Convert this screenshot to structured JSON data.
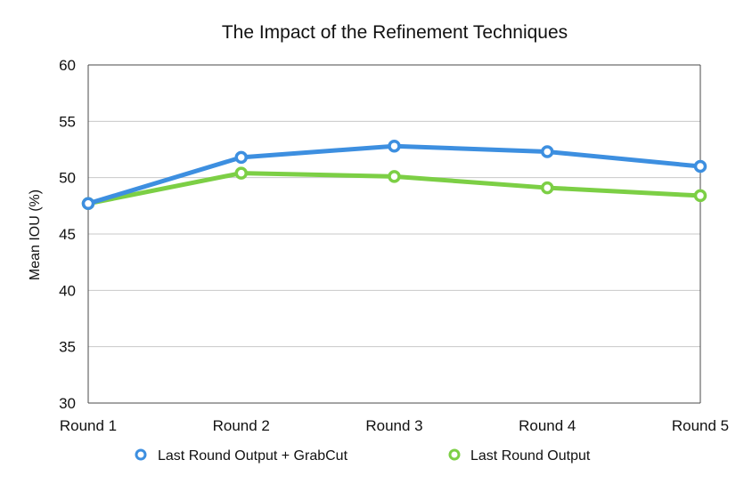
{
  "chart_data": {
    "type": "line",
    "title": "The Impact of the Refinement Techniques",
    "xlabel": "",
    "ylabel": "Mean IOU (%)",
    "categories": [
      "Round 1",
      "Round 2",
      "Round 3",
      "Round 4",
      "Round 5"
    ],
    "ylim": [
      30,
      60
    ],
    "yticks": [
      30,
      35,
      40,
      45,
      50,
      55,
      60
    ],
    "grid": true,
    "legend_position": "bottom",
    "series": [
      {
        "name": "Last Round Output + GrabCut",
        "color": "#3d8fe0",
        "values": [
          47.7,
          51.8,
          52.8,
          52.3,
          51.0
        ]
      },
      {
        "name": "Last Round Output",
        "color": "#7ccf45",
        "values": [
          47.7,
          50.4,
          50.1,
          49.1,
          48.4
        ]
      }
    ]
  }
}
